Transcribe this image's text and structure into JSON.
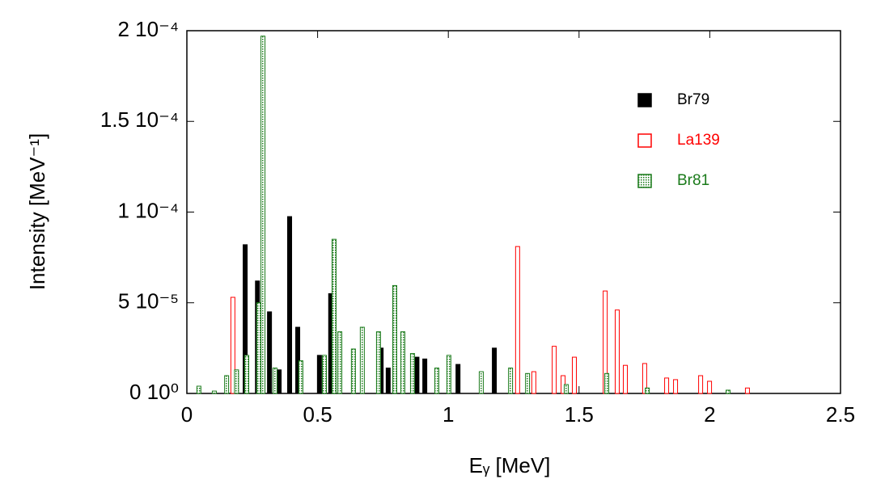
{
  "chart_data": {
    "type": "bar",
    "xlabel": "Eᵧ [MeV]",
    "ylabel": "Intensity [MeV⁻¹]",
    "xlim": [
      0,
      2.5
    ],
    "xticks": [
      0,
      0.5,
      1,
      1.5,
      2,
      2.5
    ],
    "ylim": [
      0,
      0.0002
    ],
    "yticks": [
      {
        "value": 0,
        "label": "0 10⁰"
      },
      {
        "value": 5e-05,
        "label": "5 10⁻⁵"
      },
      {
        "value": 0.0001,
        "label": "1 10⁻⁴"
      },
      {
        "value": 0.00015,
        "label": "1.5 10⁻⁴"
      },
      {
        "value": 0.0002,
        "label": "2 10⁻⁴"
      }
    ],
    "legend": "upper right",
    "series": [
      {
        "name": "Br79",
        "color": "#000000",
        "fill": "solid",
        "x": [
          0.223,
          0.27,
          0.316,
          0.353,
          0.393,
          0.424,
          0.507,
          0.55,
          0.743,
          0.77,
          0.88,
          0.91,
          1.037,
          1.176
        ],
        "values": [
          8.2e-05,
          6.2e-05,
          4.5e-05,
          1.3e-05,
          9.75e-05,
          3.65e-05,
          2.1e-05,
          5.5e-05,
          2.5e-05,
          1.4e-05,
          2e-05,
          1.9e-05,
          1.6e-05,
          2.5e-05
        ]
      },
      {
        "name": "La139",
        "color": "#ff0000",
        "fill": "hollow",
        "x": [
          0.176,
          1.265,
          1.327,
          1.405,
          1.439,
          1.482,
          1.6,
          1.646,
          1.677,
          1.751,
          1.835,
          1.869,
          1.965,
          1.999,
          2.144
        ],
        "values": [
          5.3e-05,
          8.1e-05,
          1.2e-05,
          2.6e-05,
          9.8e-06,
          2e-05,
          5.65e-05,
          4.6e-05,
          1.55e-05,
          1.65e-05,
          8.5e-06,
          7.6e-06,
          9.8e-06,
          6.7e-06,
          3e-06
        ]
      },
      {
        "name": "Br81",
        "color": "#1a7a1a",
        "fill": "checkered",
        "x": [
          0.046,
          0.105,
          0.152,
          0.19,
          0.229,
          0.275,
          0.291,
          0.337,
          0.436,
          0.526,
          0.563,
          0.585,
          0.637,
          0.671,
          0.733,
          0.795,
          0.826,
          0.863,
          0.956,
          1.002,
          1.126,
          1.238,
          1.303,
          1.451,
          1.606,
          1.761,
          2.07
        ],
        "values": [
          4e-06,
          1.3e-06,
          9.8e-06,
          1.3e-05,
          2.1e-05,
          5e-05,
          0.000197,
          1.4e-05,
          1.8e-05,
          2.1e-05,
          8.5e-05,
          3.4e-05,
          2.45e-05,
          3.65e-05,
          3.4e-05,
          5.95e-05,
          3.4e-05,
          2.2e-05,
          1.4e-05,
          2.1e-05,
          1.2e-05,
          1.4e-05,
          1.1e-05,
          4.9e-06,
          1.1e-05,
          3e-06,
          1.8e-06
        ]
      }
    ]
  }
}
